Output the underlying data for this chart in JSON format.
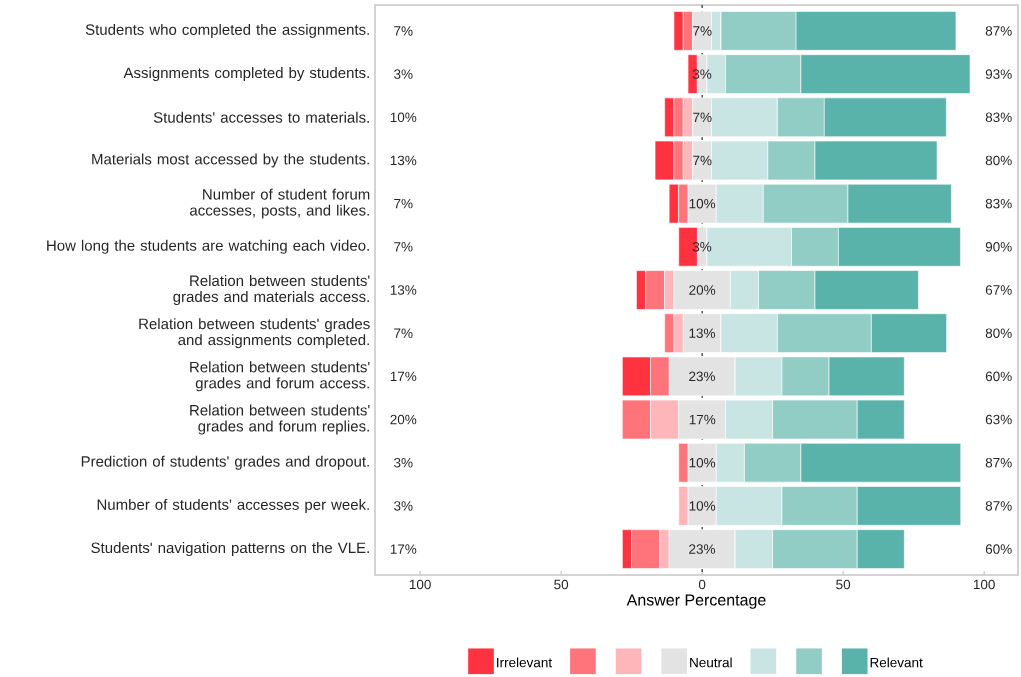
{
  "chart_data": {
    "type": "bar",
    "orientation": "horizontal",
    "xlabel": "Answer Percentage",
    "categories": [
      "Students who completed the assignments.",
      "Assignments completed by students.",
      "Students' accesses to materials.",
      "Materials most accessed by the students.",
      "Number of student forum accesses, posts, and likes.",
      "How long the students are watching each video.",
      "Relation between students' grades and materials access.",
      "Relation between students' grades and assignments completed.",
      "Relation between students' grades and forum access.",
      "Relation between students' grades and forum replies.",
      "Prediction of students' grades and dropout.",
      "Number of students' accesses per week.",
      "Students' navigation patterns on the VLE."
    ],
    "xlim": [
      -116,
      112
    ],
    "xticks": [
      {
        "value": -100,
        "label": "100"
      },
      {
        "value": -50,
        "label": "50"
      },
      0,
      50,
      100
    ],
    "legend": "bottom",
    "series": [
      {
        "name": "Irrelevant",
        "color": "#ff3340",
        "values": [
          3.3,
          3.3,
          3.3,
          6.7,
          3.3,
          6.7,
          3.3,
          null,
          10,
          null,
          null,
          null,
          3.3
        ],
        "base": [
          -10,
          -5,
          -13.3,
          -16.7,
          -11.7,
          -8.3,
          -23.3,
          null,
          -28.3,
          null,
          null,
          null,
          -28.3
        ]
      },
      {
        "name": null,
        "color": "#ff737b",
        "values": [
          3.3,
          null,
          3.3,
          3.3,
          3.3,
          null,
          6.7,
          3.3,
          6.7,
          10,
          3.3,
          null,
          10
        ],
        "base": [
          -6.7,
          null,
          -10,
          -10,
          -8.3,
          null,
          -20,
          -13.3,
          -18.3,
          -28.3,
          -8.3,
          null,
          -25
        ]
      },
      {
        "name": null,
        "color": "#ffb6ba",
        "values": [
          null,
          null,
          3.3,
          3.3,
          null,
          null,
          3.3,
          3.3,
          null,
          10,
          null,
          3.3,
          3.3
        ],
        "base": [
          null,
          null,
          -6.7,
          -6.7,
          null,
          null,
          -13.3,
          -10,
          null,
          -18.3,
          null,
          -8.3,
          -15
        ]
      },
      {
        "name": "Neutral",
        "color": "#e3e3e3",
        "values": [
          6.7,
          3.3,
          6.7,
          6.7,
          10,
          3.3,
          20,
          13.3,
          23.3,
          16.7,
          10,
          10,
          23.3
        ],
        "base": [
          -3.3,
          -1.7,
          -3.3,
          -3.3,
          -5,
          -1.7,
          -10,
          -6.7,
          -11.7,
          -8.3,
          -5,
          -5,
          -11.7
        ],
        "value_labels": [
          "7%",
          "3%",
          "7%",
          "7%",
          "10%",
          "3%",
          "20%",
          "13%",
          "23%",
          "17%",
          "10%",
          "10%",
          "23%"
        ]
      },
      {
        "name": null,
        "color": "#c8e5e3",
        "values": [
          3.3,
          6.7,
          23.3,
          20,
          16.7,
          30,
          10,
          20,
          16.7,
          16.7,
          10,
          23.3,
          13.3
        ],
        "base": [
          3.3,
          1.7,
          3.3,
          3.3,
          5,
          1.7,
          10,
          6.7,
          11.7,
          8.3,
          5,
          5,
          11.7
        ]
      },
      {
        "name": null,
        "color": "#92cdc5",
        "values": [
          26.7,
          26.7,
          16.7,
          16.7,
          30,
          16.7,
          20,
          33.3,
          16.7,
          30,
          20,
          26.7,
          30
        ],
        "base": [
          6.7,
          8.3,
          26.7,
          23.3,
          21.7,
          31.7,
          20,
          26.7,
          28.3,
          25,
          15,
          28.3,
          25
        ]
      },
      {
        "name": "Relevant",
        "color": "#5ab3aa",
        "values": [
          56.7,
          60,
          43.3,
          43.3,
          36.7,
          43.3,
          36.7,
          26.7,
          26.7,
          16.7,
          56.7,
          36.7,
          16.7
        ],
        "base": [
          33.3,
          35,
          43.3,
          40,
          51.7,
          48.3,
          40,
          60,
          45,
          55,
          35,
          55,
          55
        ]
      }
    ],
    "ref_lines": [
      {
        "axis": "x",
        "value": 0,
        "color": "#000000",
        "line_style": "dashed"
      }
    ],
    "annotations": [
      "7%",
      "3%",
      "10%",
      "13%",
      "7%",
      "7%",
      "13%",
      "7%",
      "17%",
      "20%",
      "3%",
      "3%",
      "17%",
      "87%",
      "93%",
      "83%",
      "80%",
      "83%",
      "90%",
      "67%",
      "80%",
      "60%",
      "63%",
      "87%",
      "87%",
      "60%"
    ]
  }
}
